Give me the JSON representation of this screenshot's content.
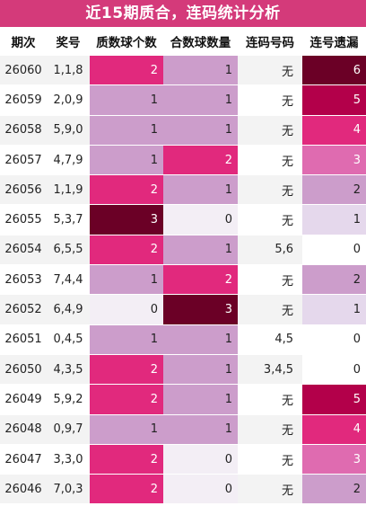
{
  "title": "近15期质合，连码统计分析",
  "headers": [
    "期次",
    "奖号",
    "质数球个数",
    "合数球数量",
    "连码号码",
    "连号遗漏"
  ],
  "colors": {
    "title_bg": "#d43a7a",
    "levels": {
      "0": "#f3eef5",
      "1": "#cc9dcb",
      "2": "#e1297d",
      "3": "#6b0026"
    },
    "omission_levels": {
      "0": "#ffffff",
      "1": "#e5d8ec",
      "2": "#cc9dcb",
      "3": "#df6bb0",
      "4": "#e1297d",
      "5": "#b3004a",
      "6": "#6b0026"
    }
  },
  "rows": [
    {
      "period": "26060",
      "award": "1,1,8",
      "prime": 2,
      "composite": 1,
      "consec": "无",
      "omission": 6
    },
    {
      "period": "26059",
      "award": "2,0,9",
      "prime": 1,
      "composite": 1,
      "consec": "无",
      "omission": 5
    },
    {
      "period": "26058",
      "award": "5,9,0",
      "prime": 1,
      "composite": 1,
      "consec": "无",
      "omission": 4
    },
    {
      "period": "26057",
      "award": "4,7,9",
      "prime": 1,
      "composite": 2,
      "consec": "无",
      "omission": 3
    },
    {
      "period": "26056",
      "award": "1,1,9",
      "prime": 2,
      "composite": 1,
      "consec": "无",
      "omission": 2
    },
    {
      "period": "26055",
      "award": "5,3,7",
      "prime": 3,
      "composite": 0,
      "consec": "无",
      "omission": 1
    },
    {
      "period": "26054",
      "award": "6,5,5",
      "prime": 2,
      "composite": 1,
      "consec": "5,6",
      "omission": 0
    },
    {
      "period": "26053",
      "award": "7,4,4",
      "prime": 1,
      "composite": 2,
      "consec": "无",
      "omission": 2
    },
    {
      "period": "26052",
      "award": "6,4,9",
      "prime": 0,
      "composite": 3,
      "consec": "无",
      "omission": 1
    },
    {
      "period": "26051",
      "award": "0,4,5",
      "prime": 1,
      "composite": 1,
      "consec": "4,5",
      "omission": 0
    },
    {
      "period": "26050",
      "award": "4,3,5",
      "prime": 2,
      "composite": 1,
      "consec": "3,4,5",
      "omission": 0
    },
    {
      "period": "26049",
      "award": "5,9,2",
      "prime": 2,
      "composite": 1,
      "consec": "无",
      "omission": 5
    },
    {
      "period": "26048",
      "award": "0,9,7",
      "prime": 1,
      "composite": 1,
      "consec": "无",
      "omission": 4
    },
    {
      "period": "26047",
      "award": "3,3,0",
      "prime": 2,
      "composite": 0,
      "consec": "无",
      "omission": 3
    },
    {
      "period": "26046",
      "award": "7,0,3",
      "prime": 2,
      "composite": 0,
      "consec": "无",
      "omission": 2
    }
  ]
}
